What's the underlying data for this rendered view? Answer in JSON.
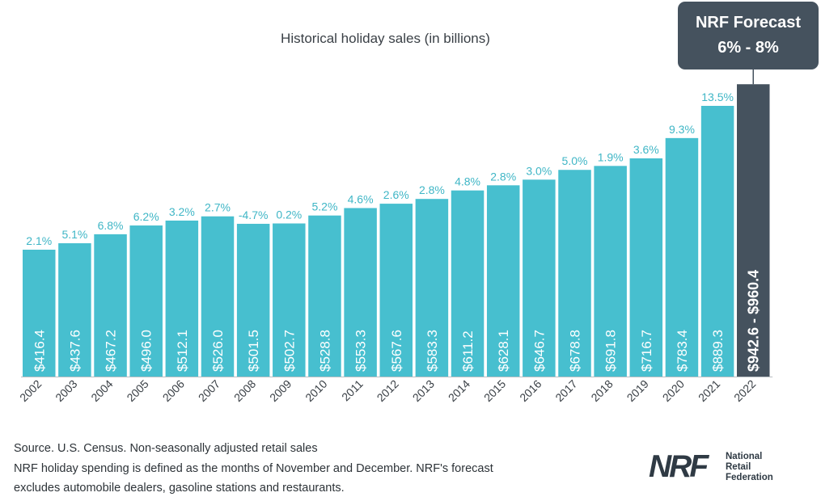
{
  "chart_data": {
    "type": "bar",
    "title": "Historical holiday sales (in billions)",
    "categories": [
      "2002",
      "2003",
      "2004",
      "2005",
      "2006",
      "2007",
      "2008",
      "2009",
      "2010",
      "2011",
      "2012",
      "2013",
      "2014",
      "2015",
      "2016",
      "2017",
      "2018",
      "2019",
      "2020",
      "2021",
      "2022"
    ],
    "values": [
      416.4,
      437.6,
      467.2,
      496.0,
      512.1,
      526.0,
      501.5,
      502.7,
      528.8,
      553.3,
      567.6,
      583.3,
      611.2,
      628.1,
      646.7,
      678.8,
      691.8,
      716.7,
      783.4,
      889.3,
      960.4
    ],
    "value_labels": [
      "$416.4",
      "$437.6",
      "$467.2",
      "$496.0",
      "$512.1",
      "$526.0",
      "$501.5",
      "$502.7",
      "$528.8",
      "$553.3",
      "$567.6",
      "$583.3",
      "$611.2",
      "$628.1",
      "$646.7",
      "$678.8",
      "$691.8",
      "$716.7",
      "$783.4",
      "$889.3",
      "$942.6 - $960.4"
    ],
    "growth_labels": [
      "2.1%",
      "5.1%",
      "6.8%",
      "6.2%",
      "3.2%",
      "2.7%",
      "-4.7%",
      "0.2%",
      "5.2%",
      "4.6%",
      "2.6%",
      "2.8%",
      "4.8%",
      "2.8%",
      "3.0%",
      "5.0%",
      "1.9%",
      "3.6%",
      "9.3%",
      "13.5%",
      ""
    ],
    "forecast_range": [
      942.6,
      960.4
    ],
    "colors": {
      "historical": "#47bfcf",
      "forecast": "#45525e",
      "growth_text": "#3fb6c6"
    }
  },
  "callout": {
    "line1": "NRF Forecast",
    "line2": "6% - 8%"
  },
  "footer": {
    "line1": "Source. U.S. Census. Non-seasonally adjusted retail sales",
    "line2": "NRF holiday spending is defined as the months of November and December. NRF's forecast",
    "line3": "excludes automobile dealers, gasoline stations and restaurants."
  },
  "logo": {
    "mark": "NRF",
    "line1": "National",
    "line2": "Retail",
    "line3": "Federation"
  }
}
